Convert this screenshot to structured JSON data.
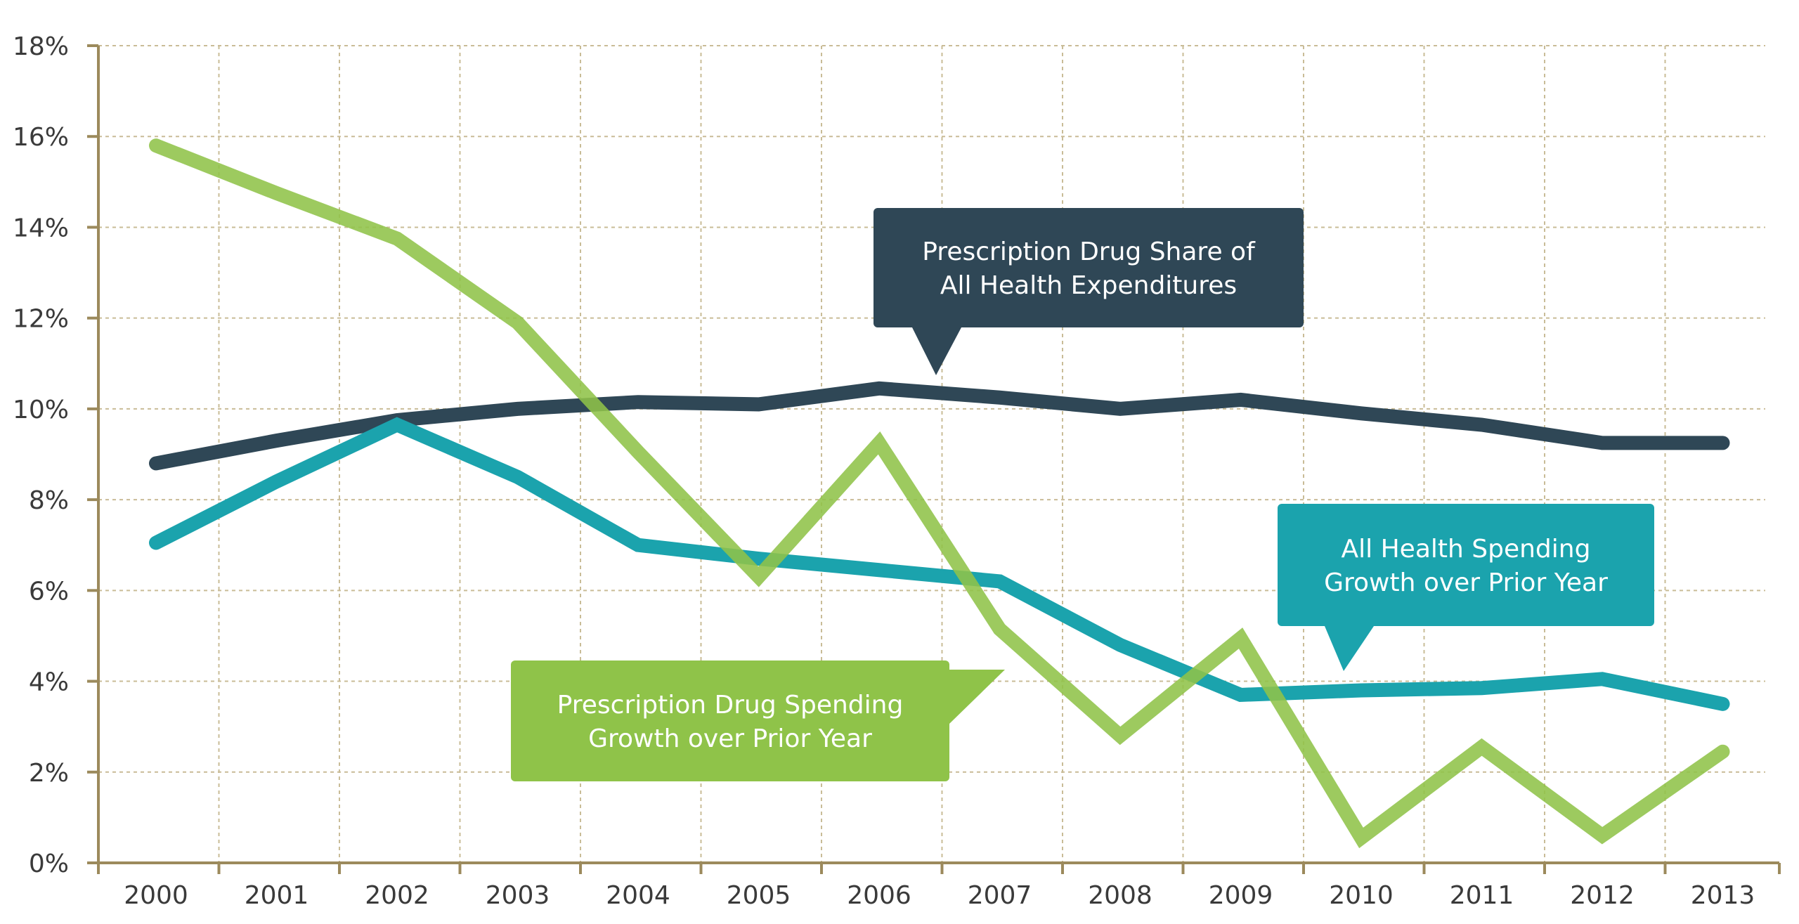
{
  "chart_data": {
    "type": "line",
    "title": "",
    "xlabel": "",
    "ylabel": "",
    "categories": [
      "2000",
      "2001",
      "2002",
      "2003",
      "2004",
      "2005",
      "2006",
      "2007",
      "2008",
      "2009",
      "2010",
      "2011",
      "2012",
      "2013"
    ],
    "ylim": [
      0,
      18
    ],
    "yticks": [
      0,
      2,
      4,
      6,
      8,
      10,
      12,
      14,
      16,
      18
    ],
    "ytick_labels": [
      "0%",
      "2%",
      "4%",
      "6%",
      "8%",
      "10%",
      "12%",
      "14%",
      "16%",
      "18%"
    ],
    "grid": true,
    "legend": "callouts",
    "series": [
      {
        "name": "Prescription Drug Share of All Health Expenditures",
        "color": "#2f4756",
        "values": [
          8.8,
          9.3,
          9.75,
          10.0,
          10.15,
          10.1,
          10.45,
          10.25,
          10.0,
          10.2,
          9.9,
          9.65,
          9.25,
          9.25
        ]
      },
      {
        "name": "All Health Spending Growth over Prior Year",
        "color": "#1ba3ad",
        "values": [
          7.05,
          8.4,
          9.65,
          8.5,
          7.0,
          6.7,
          6.45,
          6.2,
          4.8,
          3.7,
          3.8,
          3.85,
          4.05,
          3.5
        ]
      },
      {
        "name": "Prescription Drug Spending Growth over Prior Year",
        "color": "#8fc349",
        "values": [
          15.8,
          14.75,
          13.75,
          11.9,
          9.05,
          6.3,
          9.25,
          5.15,
          2.8,
          4.95,
          0.55,
          2.55,
          0.6,
          2.45
        ]
      }
    ],
    "annotations": [
      {
        "series_index": 0,
        "lines": [
          "Prescription Drug Share of",
          "All Health Expenditures"
        ],
        "color": "#2f4756"
      },
      {
        "series_index": 1,
        "lines": [
          "All Health Spending",
          "Growth over Prior Year"
        ],
        "color": "#1ba3ad"
      },
      {
        "series_index": 2,
        "lines": [
          "Prescription Drug Spending",
          "Growth over Prior Year"
        ],
        "color": "#8fc349"
      }
    ],
    "axis_color": "#9c8a5c",
    "grid_color": "#c9bc97"
  }
}
